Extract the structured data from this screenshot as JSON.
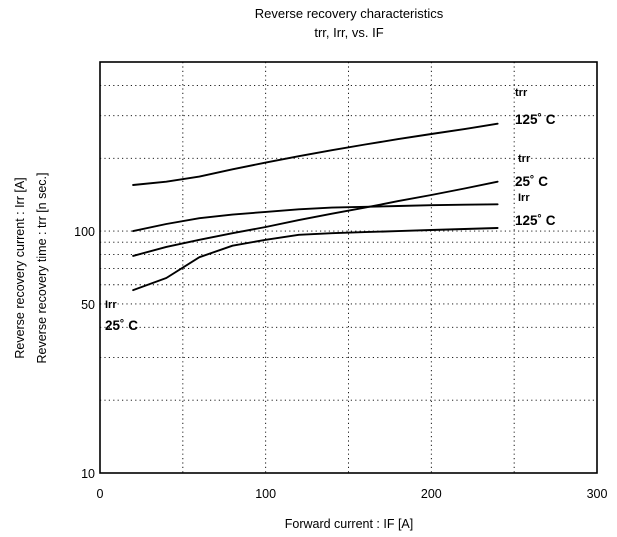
{
  "chart_data": {
    "type": "line",
    "title": "Reverse recovery characteristics",
    "subtitle": "trr,  Irr,  vs.  IF",
    "xlabel": "Forward  current  :  IF [A]",
    "ylabel_lines": [
      "Reverse  recovery  current  :  Irr  [A]",
      "Reverse recovery  time  :  trr [n sec.]"
    ],
    "xlim": [
      0,
      300
    ],
    "ylim": [
      10,
      500
    ],
    "yscale": "log",
    "grid": true,
    "x_ticks": [
      0,
      100,
      200,
      300
    ],
    "x_tick_labels": [
      "0",
      "100",
      "200",
      "300"
    ],
    "y_tick_labels": [
      {
        "value": 10,
        "label": "10"
      },
      {
        "value": 50,
        "label": "50"
      },
      {
        "value": 100,
        "label": "100"
      }
    ],
    "series": [
      {
        "name": "trr 125°C",
        "x": [
          20,
          40,
          60,
          80,
          100,
          120,
          140,
          160,
          180,
          200,
          220,
          240
        ],
        "y": [
          155,
          160,
          168,
          180,
          192,
          204,
          216,
          228,
          240,
          252,
          264,
          278
        ]
      },
      {
        "name": "trr 25°C",
        "x": [
          20,
          40,
          60,
          80,
          100,
          120,
          140,
          160,
          180,
          200,
          220,
          240
        ],
        "y": [
          79,
          86,
          92,
          98,
          104,
          111,
          118,
          125,
          133,
          141,
          150,
          160
        ]
      },
      {
        "name": "Irr 125°C",
        "x": [
          20,
          40,
          60,
          80,
          100,
          120,
          140,
          160,
          180,
          200,
          220,
          240
        ],
        "y": [
          100,
          107,
          113,
          117,
          120,
          123,
          125,
          126,
          127,
          128,
          128.5,
          129
        ]
      },
      {
        "name": "Irr 25°C",
        "x": [
          20,
          40,
          60,
          80,
          100,
          120,
          140,
          160,
          180,
          200,
          220,
          240
        ],
        "y": [
          57,
          64,
          78,
          87,
          92,
          96.5,
          98,
          99,
          100,
          101,
          102,
          103
        ]
      }
    ],
    "curve_labels": [
      {
        "name": "trr",
        "temp": "125˚ C"
      },
      {
        "name": "trr",
        "temp": "25˚ C"
      },
      {
        "name": "Irr",
        "temp": "125˚ C"
      },
      {
        "name": "Irr",
        "temp": "25˚ C"
      }
    ]
  }
}
